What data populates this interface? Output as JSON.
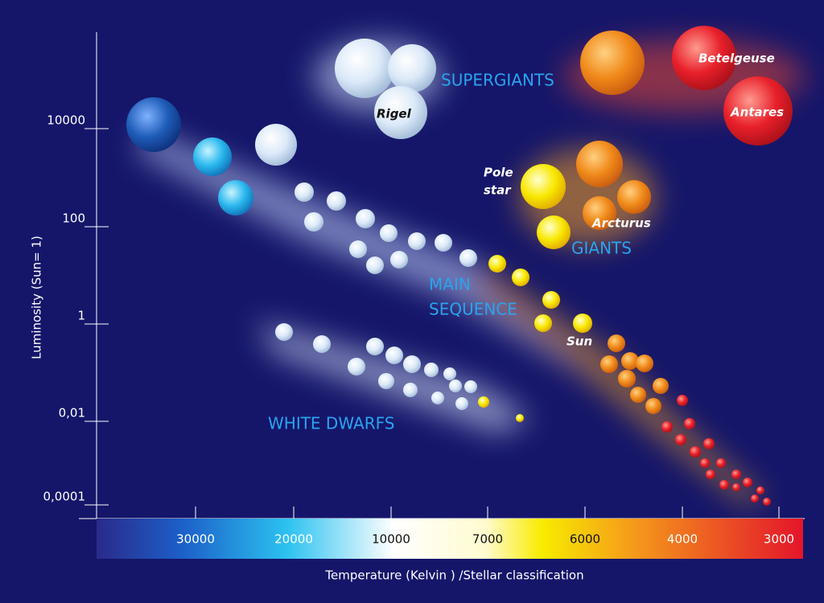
{
  "axes": {
    "y_label": "Luminosity (Sun= 1)",
    "y_ticks": [
      "10000",
      "100",
      "1",
      "0,01",
      "0,0001"
    ],
    "x_label": "Temperature (Kelvin ) /Stellar classification",
    "x_ticks": [
      "30000",
      "20000",
      "10000",
      "7000",
      "6000",
      "4000",
      "3000"
    ]
  },
  "regions": {
    "supergiants": "SUPERGIANTS",
    "giants": "GIANTS",
    "main_sequence": [
      "MAIN",
      "SEQUENCE"
    ],
    "white_dwarfs": "WHITE DWARFS"
  },
  "stars": {
    "rigel": "Rigel",
    "betelgeuse": "Betelgeuse",
    "antares": "Antares",
    "pole_star": [
      "Pole",
      "star"
    ],
    "arcturus": "Arcturus",
    "sun": "Sun"
  }
}
